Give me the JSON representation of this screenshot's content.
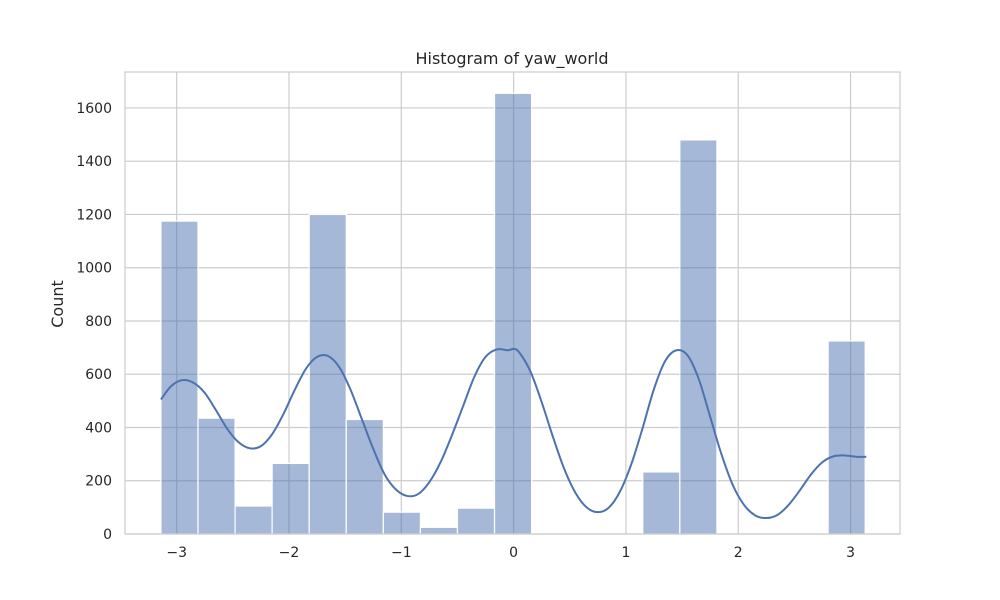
{
  "chart_data": {
    "type": "bar",
    "title": "Histogram of yaw_world",
    "xlabel": "",
    "ylabel": "Count",
    "xlim": [
      -3.46,
      3.44
    ],
    "ylim": [
      0,
      1735
    ],
    "grid": true,
    "xticks": [
      -3,
      -2,
      -1,
      0,
      1,
      2,
      3
    ],
    "xtick_labels": [
      "−3",
      "−2",
      "−1",
      "0",
      "1",
      "2",
      "3"
    ],
    "yticks": [
      0,
      200,
      400,
      600,
      800,
      1000,
      1200,
      1400,
      1600
    ],
    "ytick_labels": [
      "0",
      "200",
      "400",
      "600",
      "800",
      "1000",
      "1200",
      "1400",
      "1600"
    ],
    "bar_color": "#4c72b0",
    "bar_alpha": 0.5,
    "line_color": "#4c72b0",
    "bins": [
      {
        "x0": -3.14,
        "x1": -2.81,
        "count": 1175
      },
      {
        "x0": -2.81,
        "x1": -2.48,
        "count": 435
      },
      {
        "x0": -2.48,
        "x1": -2.15,
        "count": 105
      },
      {
        "x0": -2.15,
        "x1": -1.82,
        "count": 265
      },
      {
        "x0": -1.82,
        "x1": -1.49,
        "count": 1200
      },
      {
        "x0": -1.49,
        "x1": -1.16,
        "count": 430
      },
      {
        "x0": -1.16,
        "x1": -0.83,
        "count": 82
      },
      {
        "x0": -0.83,
        "x1": -0.5,
        "count": 25
      },
      {
        "x0": -0.5,
        "x1": -0.17,
        "count": 97
      },
      {
        "x0": -0.17,
        "x1": 0.16,
        "count": 1655
      },
      {
        "x0": 0.16,
        "x1": 0.49,
        "count": 0
      },
      {
        "x0": 0.49,
        "x1": 0.82,
        "count": 0
      },
      {
        "x0": 0.82,
        "x1": 1.15,
        "count": 0
      },
      {
        "x0": 1.15,
        "x1": 1.48,
        "count": 233
      },
      {
        "x0": 1.48,
        "x1": 1.81,
        "count": 1480
      },
      {
        "x0": 1.81,
        "x1": 2.14,
        "count": 0
      },
      {
        "x0": 2.14,
        "x1": 2.47,
        "count": 0
      },
      {
        "x0": 2.47,
        "x1": 2.8,
        "count": 0
      },
      {
        "x0": 2.8,
        "x1": 3.13,
        "count": 725
      }
    ],
    "kde": {
      "x": [
        -3.14,
        -3.05,
        -2.95,
        -2.85,
        -2.75,
        -2.65,
        -2.55,
        -2.45,
        -2.35,
        -2.25,
        -2.15,
        -2.05,
        -1.95,
        -1.85,
        -1.75,
        -1.65,
        -1.55,
        -1.45,
        -1.35,
        -1.25,
        -1.15,
        -1.05,
        -0.95,
        -0.85,
        -0.75,
        -0.65,
        -0.55,
        -0.45,
        -0.35,
        -0.25,
        -0.15,
        -0.05,
        0.0,
        0.05,
        0.15,
        0.25,
        0.35,
        0.45,
        0.55,
        0.65,
        0.75,
        0.85,
        0.95,
        1.05,
        1.15,
        1.25,
        1.35,
        1.45,
        1.55,
        1.65,
        1.75,
        1.85,
        1.95,
        2.05,
        2.15,
        2.25,
        2.35,
        2.45,
        2.55,
        2.65,
        2.75,
        2.85,
        2.95,
        3.05,
        3.14
      ],
      "y": [
        505,
        555,
        578,
        568,
        530,
        465,
        395,
        345,
        322,
        330,
        375,
        450,
        540,
        620,
        665,
        668,
        625,
        540,
        430,
        320,
        225,
        168,
        143,
        150,
        195,
        270,
        370,
        480,
        590,
        665,
        693,
        690,
        695,
        682,
        610,
        495,
        365,
        245,
        155,
        100,
        82,
        100,
        162,
        265,
        400,
        545,
        650,
        690,
        670,
        580,
        440,
        300,
        185,
        110,
        70,
        60,
        72,
        110,
        165,
        225,
        270,
        292,
        295,
        290,
        290
      ]
    }
  }
}
